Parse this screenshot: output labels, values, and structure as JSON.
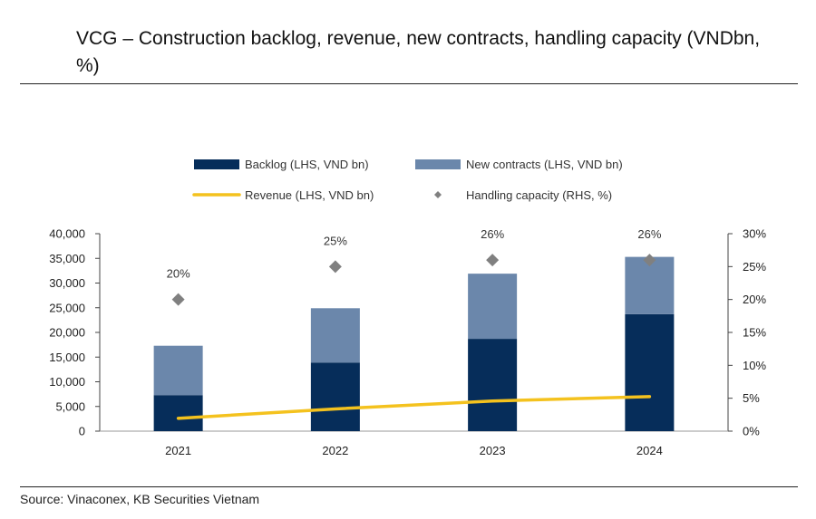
{
  "title": "VCG – Construction backlog, revenue, new contracts, handling capacity (VNDbn, %)",
  "source": "Source: Vinaconex, KB Securities Vietnam",
  "colors": {
    "backlog": "#062D5A",
    "new_contracts": "#6B87AB",
    "revenue": "#F4C21E",
    "handling_capacity": "#808080"
  },
  "chart_data": {
    "type": "bar",
    "stacked": true,
    "categories": [
      "2021",
      "2022",
      "2023",
      "2024"
    ],
    "series": [
      {
        "name": "Backlog (LHS, VND bn)",
        "type": "bar",
        "axis": "left",
        "values": [
          7300,
          13900,
          18700,
          23700
        ]
      },
      {
        "name": "New contracts (LHS, VND bn)",
        "type": "bar",
        "axis": "left",
        "values": [
          10000,
          11000,
          13200,
          11600
        ]
      },
      {
        "name": "Revenue (LHS, VND bn)",
        "type": "line",
        "axis": "left",
        "values": [
          2600,
          4500,
          6100,
          7000
        ]
      },
      {
        "name": "Handling capacity (RHS, %)",
        "type": "scatter",
        "axis": "right",
        "values": [
          20,
          25,
          26,
          26
        ],
        "labels": [
          "20%",
          "25%",
          "26%",
          "26%"
        ]
      }
    ],
    "y_left": {
      "min": 0,
      "max": 40000,
      "ticks": [
        "0",
        "5,000",
        "10,000",
        "15,000",
        "20,000",
        "25,000",
        "30,000",
        "35,000",
        "40,000"
      ]
    },
    "y_right": {
      "min": 0,
      "max": 30,
      "ticks": [
        "0%",
        "5%",
        "10%",
        "15%",
        "20%",
        "25%",
        "30%"
      ]
    },
    "legend_position": "top",
    "grid": false
  }
}
